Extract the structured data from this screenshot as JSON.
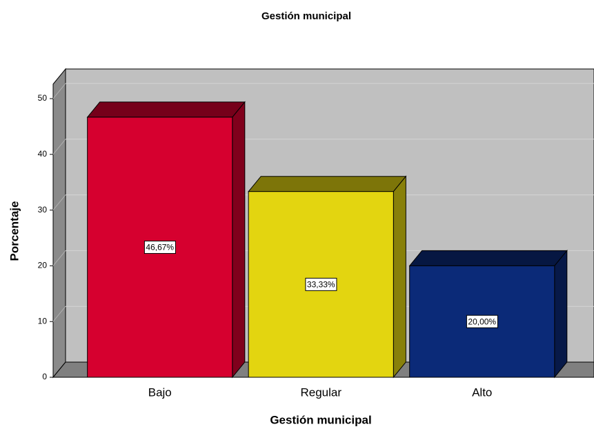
{
  "chart_data": {
    "type": "bar",
    "title": "Gestión municipal",
    "x_label": "Gestión municipal",
    "y_label": "Porcentaje",
    "categories": [
      "Bajo",
      "Regular",
      "Alto"
    ],
    "values": [
      46.67,
      33.33,
      20.0
    ],
    "value_labels": [
      "46,67%",
      "33,33%",
      "20,00%"
    ],
    "colors": [
      "#d6002f",
      "#e3d510",
      "#0b2a78"
    ],
    "ylim": [
      0,
      52.6
    ],
    "yticks": [
      0,
      10,
      20,
      30,
      40,
      50
    ],
    "grid": true
  }
}
